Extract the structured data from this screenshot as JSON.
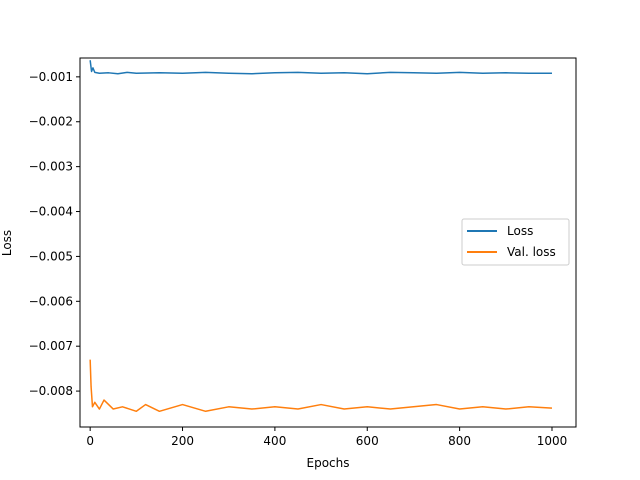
{
  "chart_data": {
    "type": "line",
    "title": "",
    "xlabel": "Epochs",
    "ylabel": "Loss",
    "xlim": [
      -22,
      1052
    ],
    "ylim": [
      -0.0088,
      -0.00058
    ],
    "xticks": [
      0,
      200,
      400,
      600,
      800,
      1000
    ],
    "xtick_labels": [
      "0",
      "200",
      "400",
      "600",
      "800",
      "1000"
    ],
    "yticks": [
      -0.001,
      -0.002,
      -0.003,
      -0.004,
      -0.005,
      -0.006,
      -0.007,
      -0.008
    ],
    "ytick_labels": [
      "−0.001",
      "−0.002",
      "−0.003",
      "−0.004",
      "−0.005",
      "−0.006",
      "−0.007",
      "−0.008"
    ],
    "grid": false,
    "legend_position": "center-right",
    "series": [
      {
        "name": "Loss",
        "color": "#1f77b4",
        "x": [
          0,
          3,
          6,
          10,
          20,
          40,
          60,
          80,
          100,
          150,
          200,
          250,
          300,
          350,
          400,
          450,
          500,
          550,
          600,
          650,
          700,
          750,
          800,
          850,
          900,
          950,
          1000
        ],
        "y": [
          -0.00063,
          -0.00088,
          -0.0008,
          -0.0009,
          -0.00092,
          -0.00091,
          -0.00093,
          -0.0009,
          -0.00092,
          -0.00091,
          -0.00092,
          -0.0009,
          -0.00092,
          -0.00093,
          -0.00091,
          -0.0009,
          -0.00092,
          -0.00091,
          -0.00093,
          -0.0009,
          -0.00091,
          -0.00092,
          -0.0009,
          -0.00092,
          -0.00091,
          -0.00092,
          -0.00092
        ]
      },
      {
        "name": "Val. loss",
        "color": "#ff7f0e",
        "x": [
          0,
          2,
          5,
          10,
          20,
          30,
          50,
          70,
          100,
          120,
          150,
          200,
          250,
          300,
          350,
          400,
          450,
          500,
          550,
          600,
          650,
          700,
          750,
          800,
          850,
          900,
          950,
          1000
        ],
        "y": [
          -0.0073,
          -0.0079,
          -0.00835,
          -0.00825,
          -0.0084,
          -0.0082,
          -0.0084,
          -0.00835,
          -0.00845,
          -0.0083,
          -0.00845,
          -0.0083,
          -0.00845,
          -0.00835,
          -0.0084,
          -0.00835,
          -0.0084,
          -0.0083,
          -0.0084,
          -0.00835,
          -0.0084,
          -0.00835,
          -0.0083,
          -0.0084,
          -0.00835,
          -0.0084,
          -0.00835,
          -0.00838
        ]
      }
    ]
  }
}
